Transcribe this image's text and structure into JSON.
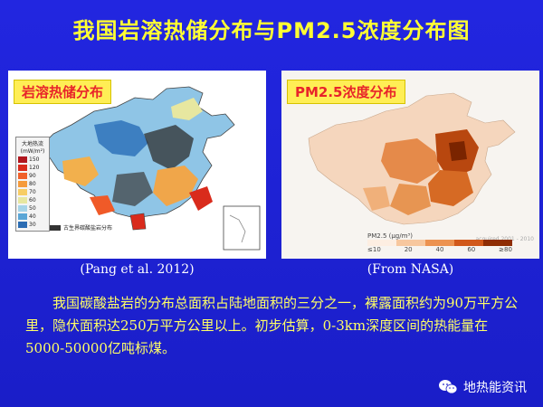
{
  "slide": {
    "title": "我国岩溶热储分布与PM2.5浓度分布图",
    "left_panel": {
      "label": "岩溶热储分布",
      "legend_title": "大地热流",
      "legend_unit": "(mW/m²)",
      "legend_values": [
        "150",
        "120",
        "90",
        "80",
        "70",
        "60",
        "50",
        "40",
        "30"
      ],
      "legend_colors": [
        "#b0171f",
        "#d92b1c",
        "#f0602a",
        "#f59b3c",
        "#f7cd65",
        "#e7e7a0",
        "#a6d4e8",
        "#5aa6d6",
        "#2c6db3"
      ],
      "note": "古生界碳酸盐岩分布",
      "caption": "(Pang et al. 2012)"
    },
    "right_panel": {
      "label": "PM2.5浓度分布",
      "scale_label": "PM2.5 (µg/m³)",
      "scale_ticks": [
        "≤10",
        "20",
        "40",
        "60",
        "≥80"
      ],
      "credit": "acquired 2001 - 2010",
      "caption": "(From NASA)"
    },
    "body": "我国碳酸盐岩的分布总面积占陆地面积的三分之一，裸露面积约为90万平方公里，隐伏面积达250万平方公里以上。初步估算，0-3km深度区间的热能量在5000-50000亿吨标煤。",
    "watermark": "地热能资讯",
    "colors": {
      "background": "#1a1ec8",
      "title": "#ffff33",
      "body_text": "#ffff66",
      "label_text": "#e8242a",
      "label_bg": "#ffee55"
    }
  }
}
